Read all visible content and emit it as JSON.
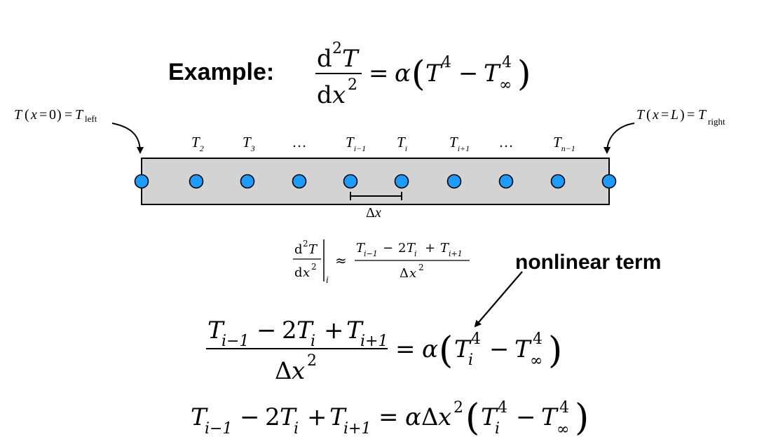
{
  "heading": {
    "label": "Example:",
    "governing": {
      "lhs_num_d": "d",
      "lhs_num_exp": "2",
      "lhs_num_T": "T",
      "lhs_den_d": "d",
      "lhs_den_x": "x",
      "lhs_den_exp": "2",
      "eq": "=",
      "alpha": "α",
      "lparen": "(",
      "T": "T",
      "exp4a": "4",
      "minus": "−",
      "Tinf": "T",
      "inf": "∞",
      "exp4b": "4",
      "rparen": ")"
    }
  },
  "boundary": {
    "left": {
      "T": "T",
      "open": "(",
      "x": "x",
      "eq1": "=",
      "zero": "0",
      "close": ")",
      "eq2": "=",
      "T2": "T",
      "sub": "left"
    },
    "right": {
      "T": "T",
      "open": "(",
      "x": "x",
      "eq1": "=",
      "L": "L",
      "close": ")",
      "eq2": "=",
      "T2": "T",
      "sub": "right"
    }
  },
  "node_labels": [
    {
      "base": "T",
      "sub": "2"
    },
    {
      "base": "T",
      "sub": "3"
    },
    {
      "base": "…",
      "sub": ""
    },
    {
      "base": "T",
      "sub": "i−1"
    },
    {
      "base": "T",
      "sub": "i"
    },
    {
      "base": "T",
      "sub": "i+1"
    },
    {
      "base": "…",
      "sub": ""
    },
    {
      "base": "T",
      "sub": "n−1"
    }
  ],
  "delta_label": {
    "delta": "Δ",
    "x": "x"
  },
  "colors": {
    "rod_fill": "#d3d3d3",
    "node_fill": "#1e9bff",
    "stroke": "#000000"
  },
  "approx": {
    "num_d": "d",
    "num_exp": "2",
    "num_T": "T",
    "den_d": "d",
    "den_x": "x",
    "den_exp": "2",
    "eval_sub": "i",
    "approx_sign": "≈",
    "rhs_num": {
      "T1": "T",
      "s1": "i−1",
      "minus": "−",
      "two": "2",
      "T2": "T",
      "s2": "i",
      "plus": "+",
      "T3": "T",
      "s3": "i+1"
    },
    "rhs_den": {
      "delta": "Δ",
      "x": "x",
      "exp": "2"
    }
  },
  "annotation": {
    "label": "nonlinear term"
  },
  "discrete_eq": {
    "num": {
      "T1": "T",
      "s1": "i−1",
      "minus": "−",
      "two": "2",
      "T2": "T",
      "s2": "i",
      "plus": "+",
      "T3": "T",
      "s3": "i+1"
    },
    "den": {
      "delta": "Δ",
      "x": "x",
      "exp": "2"
    },
    "eq": "=",
    "alpha": "α",
    "lparen": "(",
    "Ti": "T",
    "si": "i",
    "exp4a": "4",
    "minus": "−",
    "Tinf": "T",
    "inf": "∞",
    "exp4b": "4",
    "rparen": ")"
  },
  "final_eq": {
    "T1": "T",
    "s1": "i−1",
    "minus1": "−",
    "two": "2",
    "T2": "T",
    "s2": "i",
    "plus": "+",
    "T3": "T",
    "s3": "i+1",
    "eq": "=",
    "alpha": "α",
    "delta": "Δ",
    "x": "x",
    "exp2": "2",
    "lparen": "(",
    "Ti": "T",
    "si": "i",
    "exp4a": "4",
    "minus2": "−",
    "Tinf": "T",
    "inf": "∞",
    "exp4b": "4",
    "rparen": ")"
  }
}
